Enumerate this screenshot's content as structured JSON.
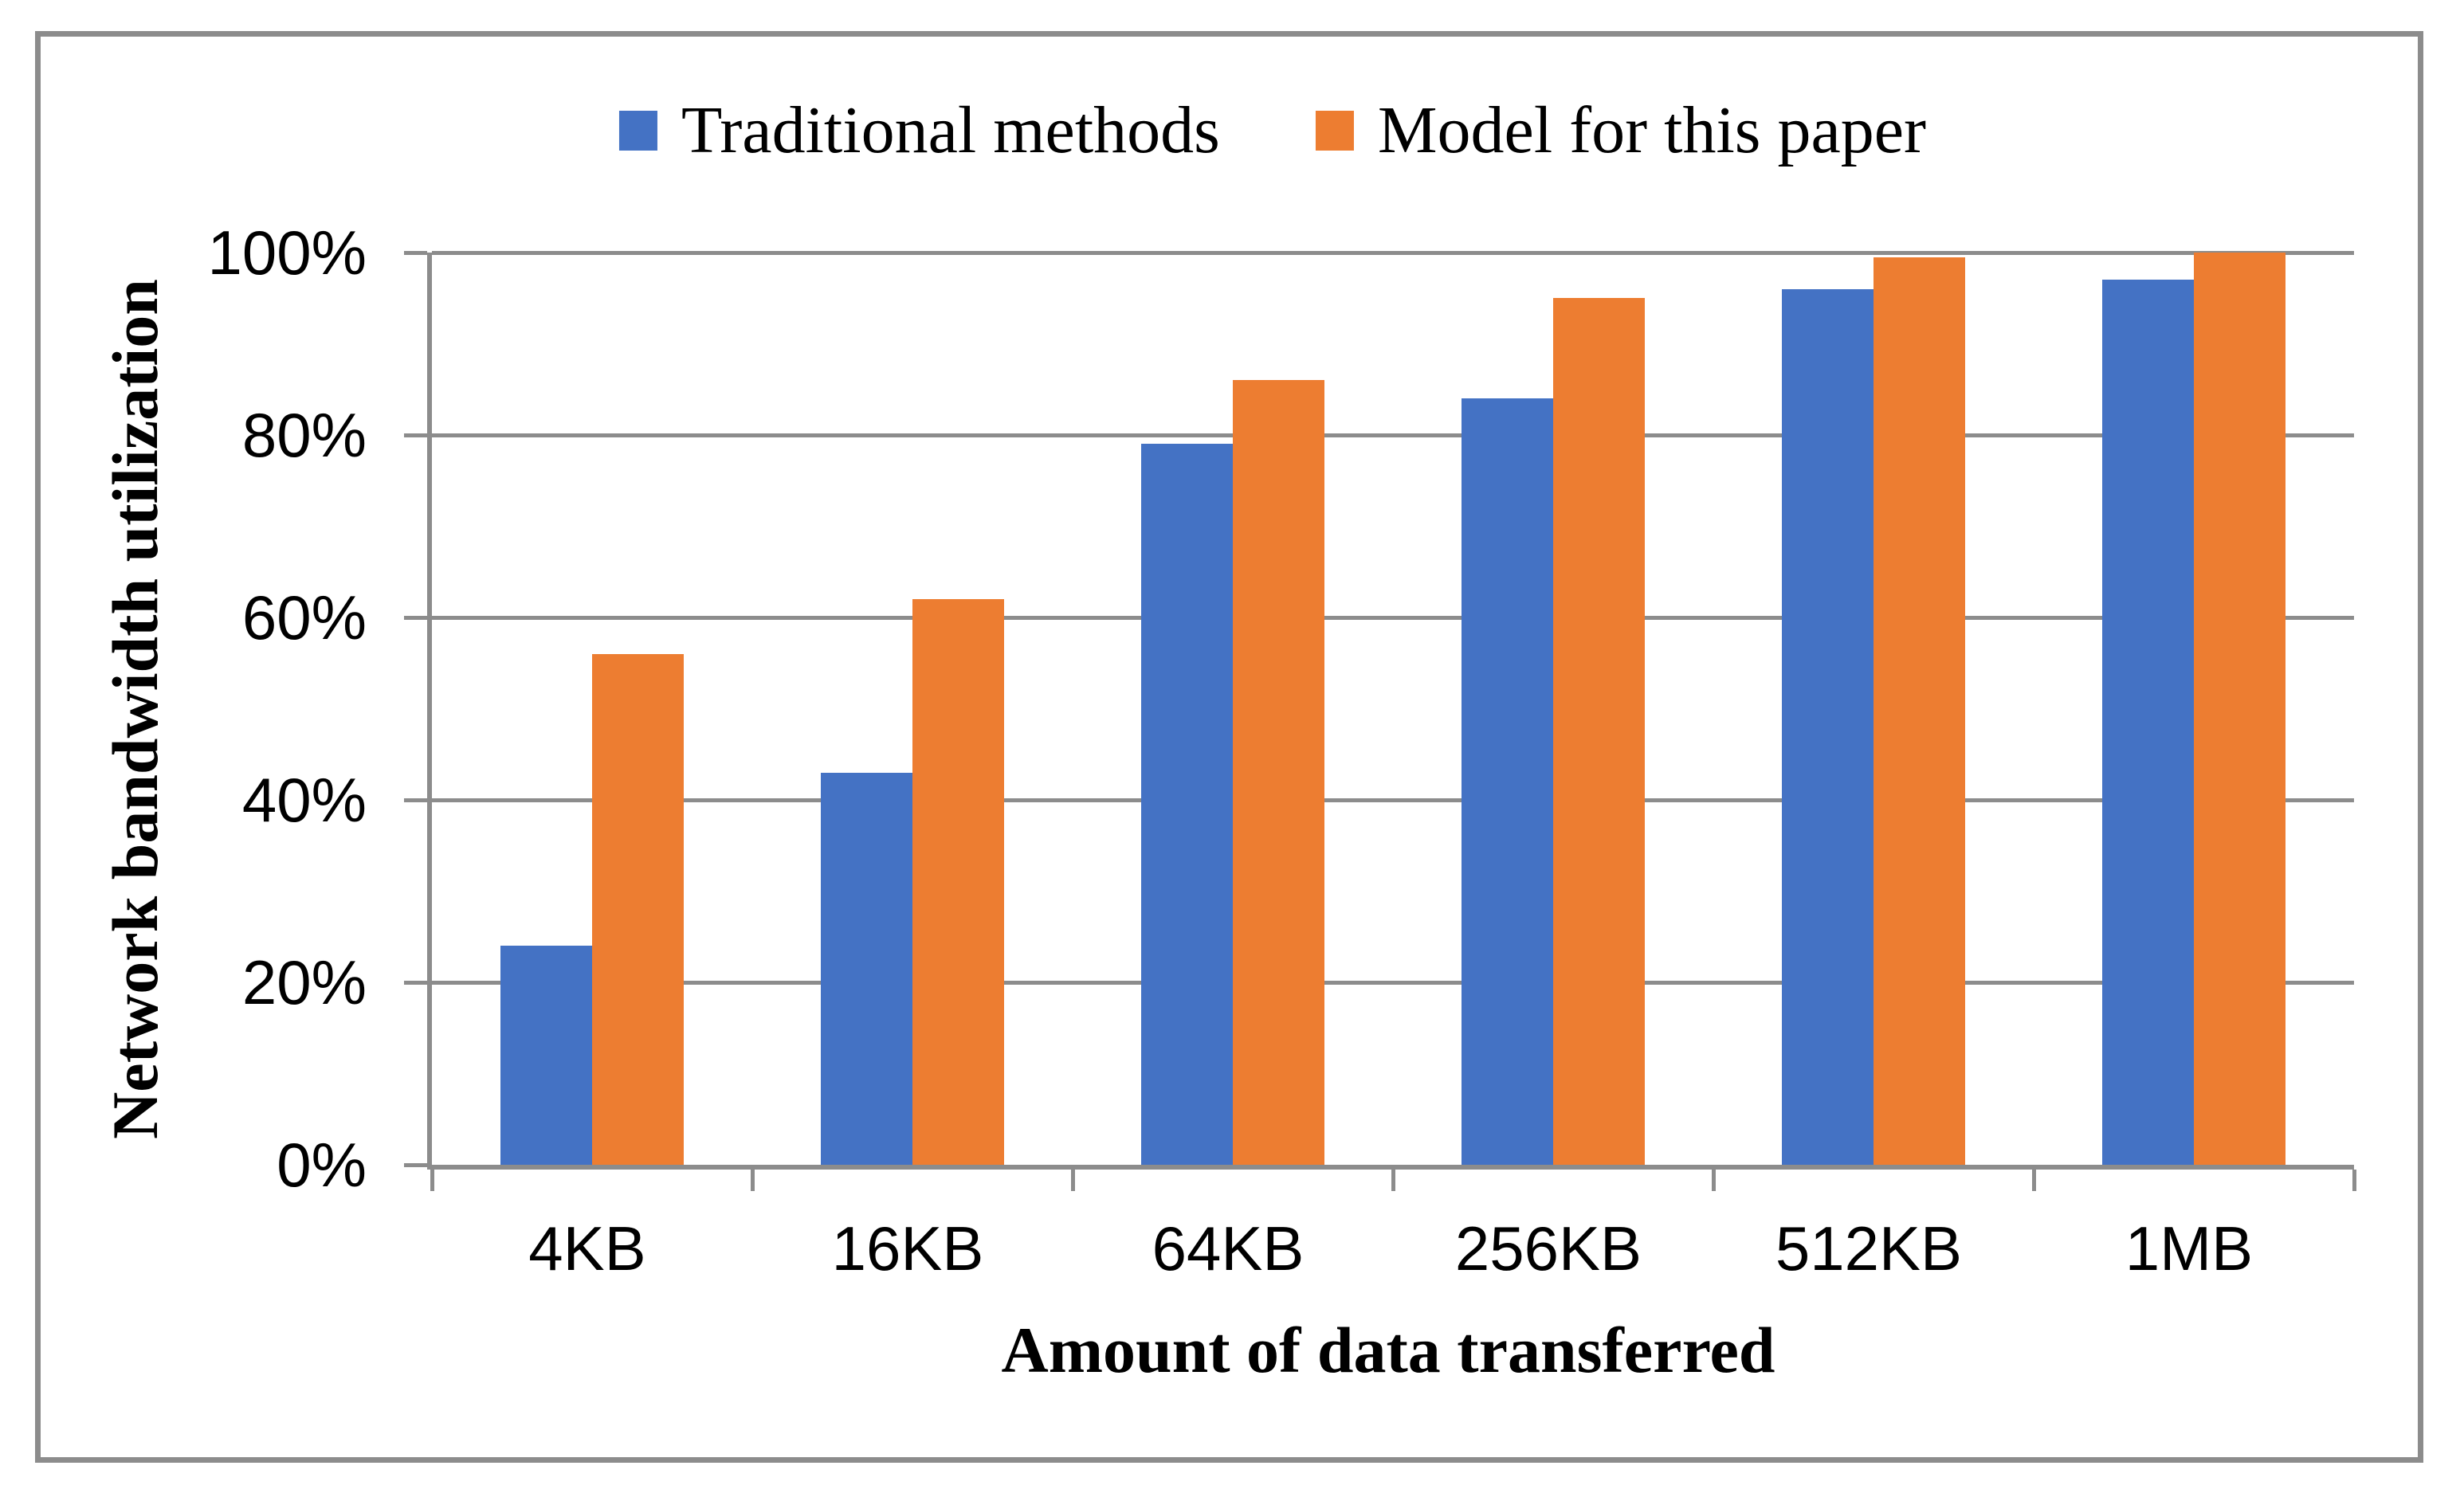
{
  "chart_data": {
    "type": "bar",
    "title": "",
    "categories": [
      "4KB",
      "16KB",
      "64KB",
      "256KB",
      "512KB",
      "1MB"
    ],
    "series": [
      {
        "name": "Traditional methods",
        "color": "#4472C4",
        "values": [
          24,
          43,
          79,
          84,
          96,
          97
        ]
      },
      {
        "name": "Model for this paper",
        "color": "#ED7D31",
        "values": [
          56,
          62,
          86,
          95,
          99.5,
          100
        ]
      }
    ],
    "xlabel": "Amount of data transferred",
    "ylabel": "Network bandwidth utilization",
    "ylim": [
      0,
      100
    ],
    "ytick_step": 20,
    "ytick_labels": [
      "0%",
      "20%",
      "40%",
      "60%",
      "80%",
      "100%"
    ],
    "grid": true,
    "legend_position": "top-center",
    "gridline_color": "#8C8C8C",
    "axis_color": "#8C8C8C",
    "frame_color": "#8C8C8C",
    "text_color": "#000000"
  }
}
